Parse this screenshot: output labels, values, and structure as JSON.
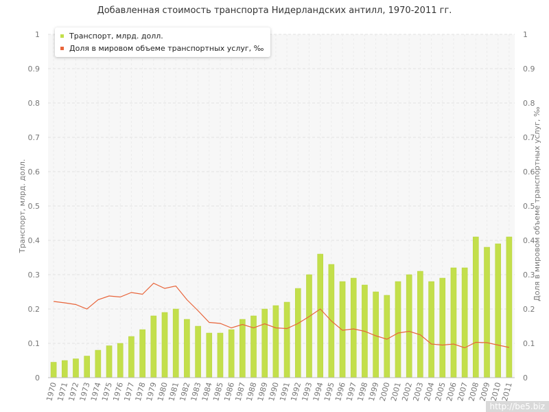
{
  "chart_data": {
    "type": "bar+line",
    "title": "Добавленная стоимость транспорта Нидерландских антилл, 1970-2011 гг.",
    "ylabel_left": "Транспорт, млрд. долл.",
    "ylabel_right": "Доля в мировом объеме транспортных услуг, ‰",
    "ylim": [
      0,
      1
    ],
    "yticks": [
      "0",
      "0.1",
      "0.2",
      "0.3",
      "0.4",
      "0.5",
      "0.6",
      "0.7",
      "0.8",
      "0.9",
      "1"
    ],
    "categories": [
      "1970",
      "1971",
      "1972",
      "1973",
      "1974",
      "1975",
      "1976",
      "1977",
      "1978",
      "1979",
      "1980",
      "1981",
      "1982",
      "1983",
      "1984",
      "1985",
      "1986",
      "1987",
      "1988",
      "1989",
      "1990",
      "1991",
      "1992",
      "1993",
      "1994",
      "1995",
      "1996",
      "1997",
      "1998",
      "1999",
      "2000",
      "2001",
      "2002",
      "2003",
      "2004",
      "2005",
      "2006",
      "2007",
      "2008",
      "2009",
      "2010",
      "2011"
    ],
    "series": [
      {
        "name": "Транспорт, млрд. долл.",
        "kind": "bar",
        "color": "#c3df4b",
        "values": [
          0.045,
          0.05,
          0.055,
          0.063,
          0.08,
          0.093,
          0.1,
          0.12,
          0.14,
          0.18,
          0.19,
          0.2,
          0.17,
          0.15,
          0.13,
          0.13,
          0.14,
          0.17,
          0.18,
          0.2,
          0.21,
          0.22,
          0.26,
          0.3,
          0.36,
          0.33,
          0.28,
          0.29,
          0.27,
          0.25,
          0.24,
          0.28,
          0.3,
          0.31,
          0.28,
          0.29,
          0.32,
          0.32,
          0.41,
          0.38,
          0.39,
          0.41
        ]
      },
      {
        "name": "Доля в мировом объеме транспортных услуг, ‰",
        "kind": "line",
        "color": "#e8643a",
        "values": [
          0.222,
          0.218,
          0.213,
          0.2,
          0.227,
          0.238,
          0.235,
          0.248,
          0.243,
          0.275,
          0.26,
          0.267,
          0.227,
          0.195,
          0.161,
          0.158,
          0.145,
          0.155,
          0.145,
          0.157,
          0.145,
          0.143,
          0.158,
          0.178,
          0.2,
          0.165,
          0.138,
          0.142,
          0.135,
          0.122,
          0.112,
          0.13,
          0.135,
          0.125,
          0.098,
          0.095,
          0.098,
          0.087,
          0.103,
          0.102,
          0.095,
          0.088
        ]
      }
    ],
    "grid": true,
    "legend_position": "top-left"
  },
  "watermark": "http://be5.biz"
}
